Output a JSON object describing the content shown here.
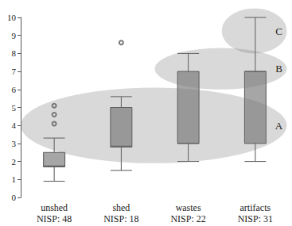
{
  "chart_data": {
    "type": "boxplot",
    "categories": [
      "unshed\nNISP: 48",
      "shed\nNISP: 18",
      "wastes\nNISP: 22",
      "artifacts\nNISP: 31"
    ],
    "boxes": [
      {
        "min": 0.9,
        "q1": 1.7,
        "median": 1.75,
        "q3": 2.5,
        "max": 3.3,
        "outliers": [
          4.1,
          4.6,
          5.1
        ]
      },
      {
        "min": 1.5,
        "q1": 2.8,
        "median": 2.85,
        "q3": 5.0,
        "max": 5.6,
        "outliers": [
          8.6
        ]
      },
      {
        "min": 2.0,
        "q1": 3.0,
        "median": 3.0,
        "q3": 7.0,
        "max": 8.0,
        "outliers": []
      },
      {
        "min": 2.0,
        "q1": 3.0,
        "median": 7.0,
        "q3": 7.0,
        "max": 10.0,
        "outliers": []
      }
    ],
    "color": "#a6a6a6",
    "regions": [
      {
        "label": "A",
        "from": "unshed\nNISP: 48",
        "to": "artifacts\nNISP: 31",
        "ylim": [
          1.9,
          6.1
        ]
      },
      {
        "label": "B",
        "from": "wastes\nNISP: 22",
        "to": "artifacts\nNISP: 31",
        "ylim": [
          6.0,
          8.3
        ]
      },
      {
        "label": "C",
        "from": "artifacts\nNISP: 31",
        "to": "artifacts\nNISP: 31",
        "ylim": [
          8.0,
          10.5
        ]
      }
    ],
    "ylim": [
      0,
      10
    ],
    "yticks": [
      0,
      1,
      2,
      3,
      4,
      5,
      6,
      7,
      8,
      9,
      10
    ],
    "grid": false
  }
}
